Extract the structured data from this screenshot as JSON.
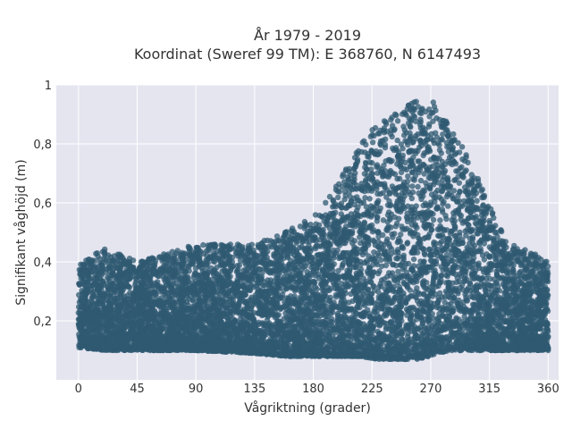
{
  "chart_data": {
    "type": "scatter",
    "title": [
      "År 1979 - 2019",
      "Koordinat (Sweref 99 TM): E 368760, N 6147493"
    ],
    "xlabel": "Vågriktning (grader)",
    "ylabel": "Signifikant våghöjd (m)",
    "xlim": [
      -17,
      368
    ],
    "ylim": [
      0.0,
      1.0
    ],
    "xticks": [
      0,
      45,
      90,
      135,
      180,
      225,
      270,
      315,
      360
    ],
    "xtick_labels": [
      "0",
      "45",
      "90",
      "135",
      "180",
      "225",
      "270",
      "315",
      "360"
    ],
    "yticks": [
      0.2,
      0.4,
      0.6,
      0.8,
      1.0
    ],
    "ytick_labels": [
      "0,2",
      "0,4",
      "0,6",
      "0,8",
      "1"
    ],
    "grid": true,
    "point_color": "#2f5a72",
    "plot_background": "#e5e5f0",
    "envelope": {
      "x": [
        0,
        20,
        45,
        90,
        135,
        160,
        180,
        200,
        215,
        230,
        245,
        260,
        268,
        275,
        285,
        300,
        315,
        330,
        345,
        360
      ],
      "lower": [
        0.11,
        0.1,
        0.1,
        0.1,
        0.09,
        0.08,
        0.08,
        0.08,
        0.08,
        0.07,
        0.07,
        0.07,
        0.08,
        0.09,
        0.1,
        0.1,
        0.1,
        0.1,
        0.1,
        0.1
      ],
      "upper": [
        0.39,
        0.45,
        0.4,
        0.46,
        0.46,
        0.51,
        0.55,
        0.68,
        0.79,
        0.88,
        0.91,
        0.95,
        0.96,
        0.93,
        0.86,
        0.75,
        0.59,
        0.46,
        0.44,
        0.4
      ]
    }
  }
}
